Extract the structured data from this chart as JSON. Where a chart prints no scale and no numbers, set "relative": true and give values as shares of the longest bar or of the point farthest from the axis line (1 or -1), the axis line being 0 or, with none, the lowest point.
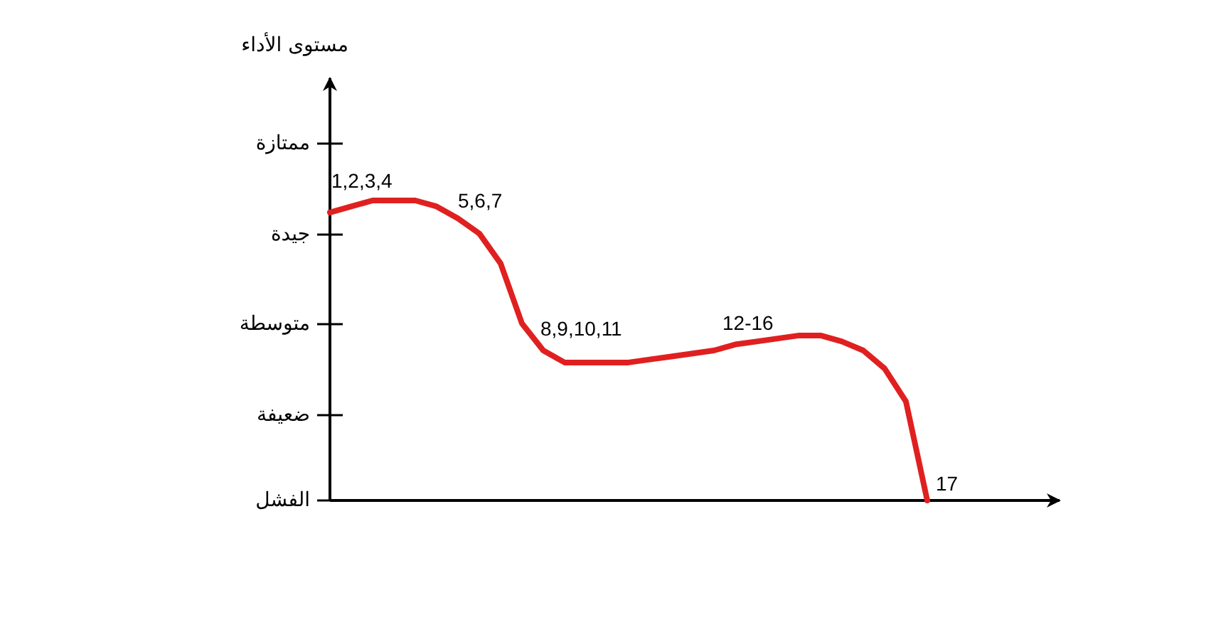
{
  "chart_data": {
    "type": "line",
    "relative": true,
    "categories": [
      null,
      null,
      null,
      null,
      null,
      null,
      null,
      null,
      null,
      null,
      null,
      null,
      null,
      null,
      null,
      null,
      null,
      null,
      null,
      null,
      null,
      null,
      null,
      null,
      null,
      null,
      null,
      null,
      null
    ],
    "values": [
      0.96,
      0.98,
      1.0,
      1,
      1.0,
      0.98,
      0.94,
      0.89,
      0.79,
      0.59,
      0.5,
      0.46,
      0.46,
      0.46,
      0.46,
      0.47,
      0.48,
      0.49,
      0.5,
      0.52,
      0.53,
      0.54,
      0.55,
      0.55,
      0.53,
      0.5,
      0.44,
      0.33,
      0
    ],
    "color": "#e02020",
    "grid": false,
    "marker": "none",
    "line_style": "solid",
    "annotations": [
      "مستوى الأداء",
      "ممتازة",
      "جيدة",
      "متوسطة",
      "ضعيفة",
      "الفشل",
      "1,2,3,4",
      "5,6,7",
      "8,9,10,11",
      "12-16",
      "17"
    ]
  }
}
